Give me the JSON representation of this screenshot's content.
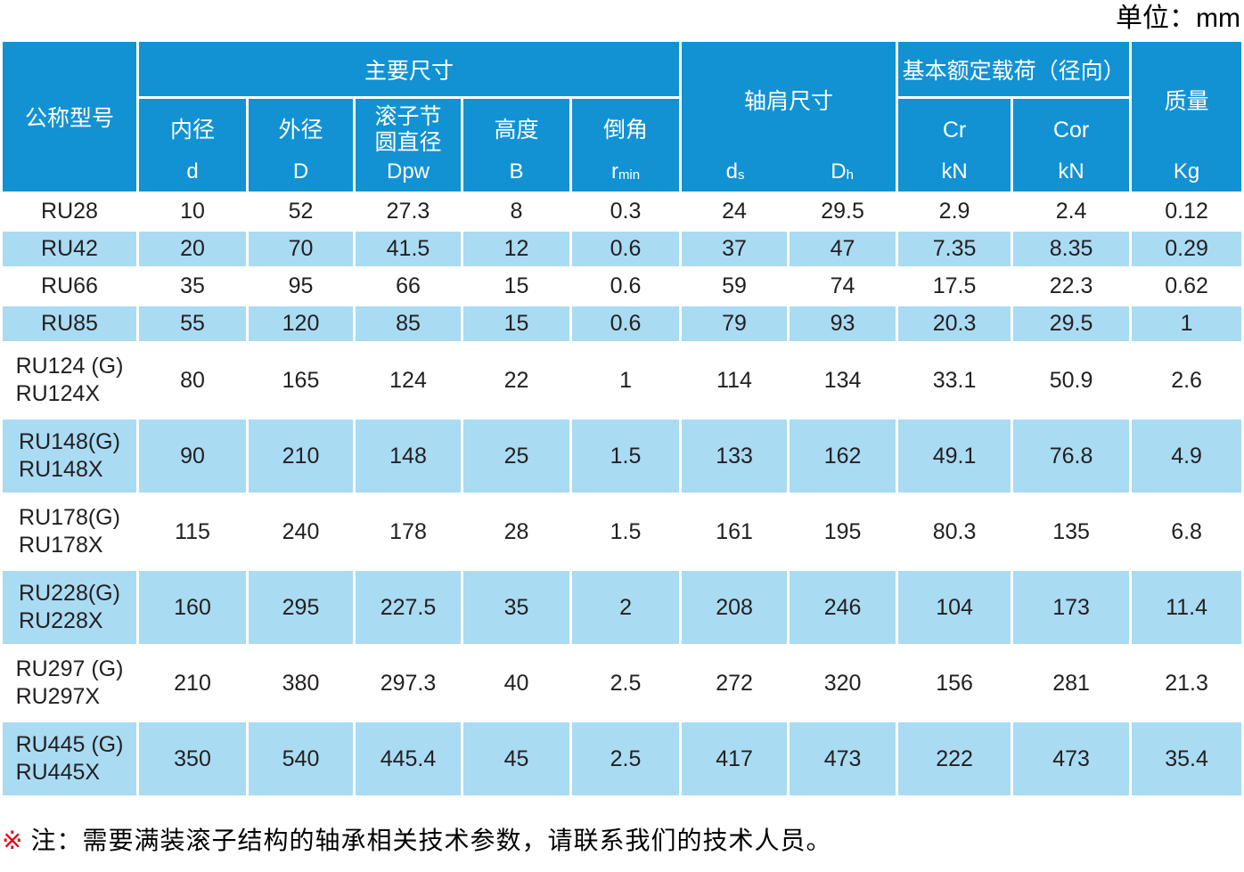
{
  "unit_label": "单位：mm",
  "colors": {
    "header_blue": "#1292d3",
    "row_blue": "#a9dbf3",
    "header_text": "#ffffff",
    "body_text": "#231f20",
    "note_marker_red": "#e60012"
  },
  "table": {
    "model_header": "公称型号",
    "groups": {
      "main_dims": "主要尺寸",
      "shoulder_dims": "轴肩尺寸",
      "load_rating": "基本额定载荷（径向）",
      "mass": "质量"
    },
    "columns": {
      "bore": {
        "label": "内径",
        "symbol": "d"
      },
      "outer": {
        "label": "外径",
        "symbol": "D"
      },
      "pitch": {
        "label_line1": "滚子节",
        "label_line2": "圆直径",
        "symbol": "Dpw"
      },
      "height": {
        "label": "高度",
        "symbol": "B"
      },
      "chamfer": {
        "label": "倒角",
        "symbol_base": "r",
        "symbol_sub": "min"
      },
      "ds": {
        "base": "d",
        "sub": "s"
      },
      "dh": {
        "base": "D",
        "sub": "h"
      },
      "cr": {
        "label": "Cr",
        "unit": "kN"
      },
      "cor": {
        "label": "Cor",
        "unit": "kN"
      },
      "mass_unit": "Kg"
    },
    "rows": [
      {
        "model": [
          "RU28"
        ],
        "values": [
          "10",
          "52",
          "27.3",
          "8",
          "0.3",
          "24",
          "29.5",
          "2.9",
          "2.4",
          "0.12"
        ]
      },
      {
        "model": [
          "RU42"
        ],
        "values": [
          "20",
          "70",
          "41.5",
          "12",
          "0.6",
          "37",
          "47",
          "7.35",
          "8.35",
          "0.29"
        ]
      },
      {
        "model": [
          "RU66"
        ],
        "values": [
          "35",
          "95",
          "66",
          "15",
          "0.6",
          "59",
          "74",
          "17.5",
          "22.3",
          "0.62"
        ]
      },
      {
        "model": [
          "RU85"
        ],
        "values": [
          "55",
          "120",
          "85",
          "15",
          "0.6",
          "79",
          "93",
          "20.3",
          "29.5",
          "1"
        ]
      },
      {
        "model": [
          "RU124 (G)",
          "RU124X"
        ],
        "values": [
          "80",
          "165",
          "124",
          "22",
          "1",
          "114",
          "134",
          "33.1",
          "50.9",
          "2.6"
        ]
      },
      {
        "model": [
          "RU148(G)",
          "RU148X"
        ],
        "values": [
          "90",
          "210",
          "148",
          "25",
          "1.5",
          "133",
          "162",
          "49.1",
          "76.8",
          "4.9"
        ]
      },
      {
        "model": [
          "RU178(G)",
          "RU178X"
        ],
        "values": [
          "115",
          "240",
          "178",
          "28",
          "1.5",
          "161",
          "195",
          "80.3",
          "135",
          "6.8"
        ]
      },
      {
        "model": [
          "RU228(G)",
          "RU228X"
        ],
        "values": [
          "160",
          "295",
          "227.5",
          "35",
          "2",
          "208",
          "246",
          "104",
          "173",
          "11.4"
        ]
      },
      {
        "model": [
          "RU297 (G)",
          "RU297X"
        ],
        "values": [
          "210",
          "380",
          "297.3",
          "40",
          "2.5",
          "272",
          "320",
          "156",
          "281",
          "21.3"
        ]
      },
      {
        "model": [
          "RU445 (G)",
          "RU445X"
        ],
        "values": [
          "350",
          "540",
          "445.4",
          "45",
          "2.5",
          "417",
          "473",
          "222",
          "473",
          "35.4"
        ]
      }
    ]
  },
  "note": {
    "marker": "※",
    "text": "注：需要满装滚子结构的轴承相关技术参数，请联系我们的技术人员。"
  }
}
